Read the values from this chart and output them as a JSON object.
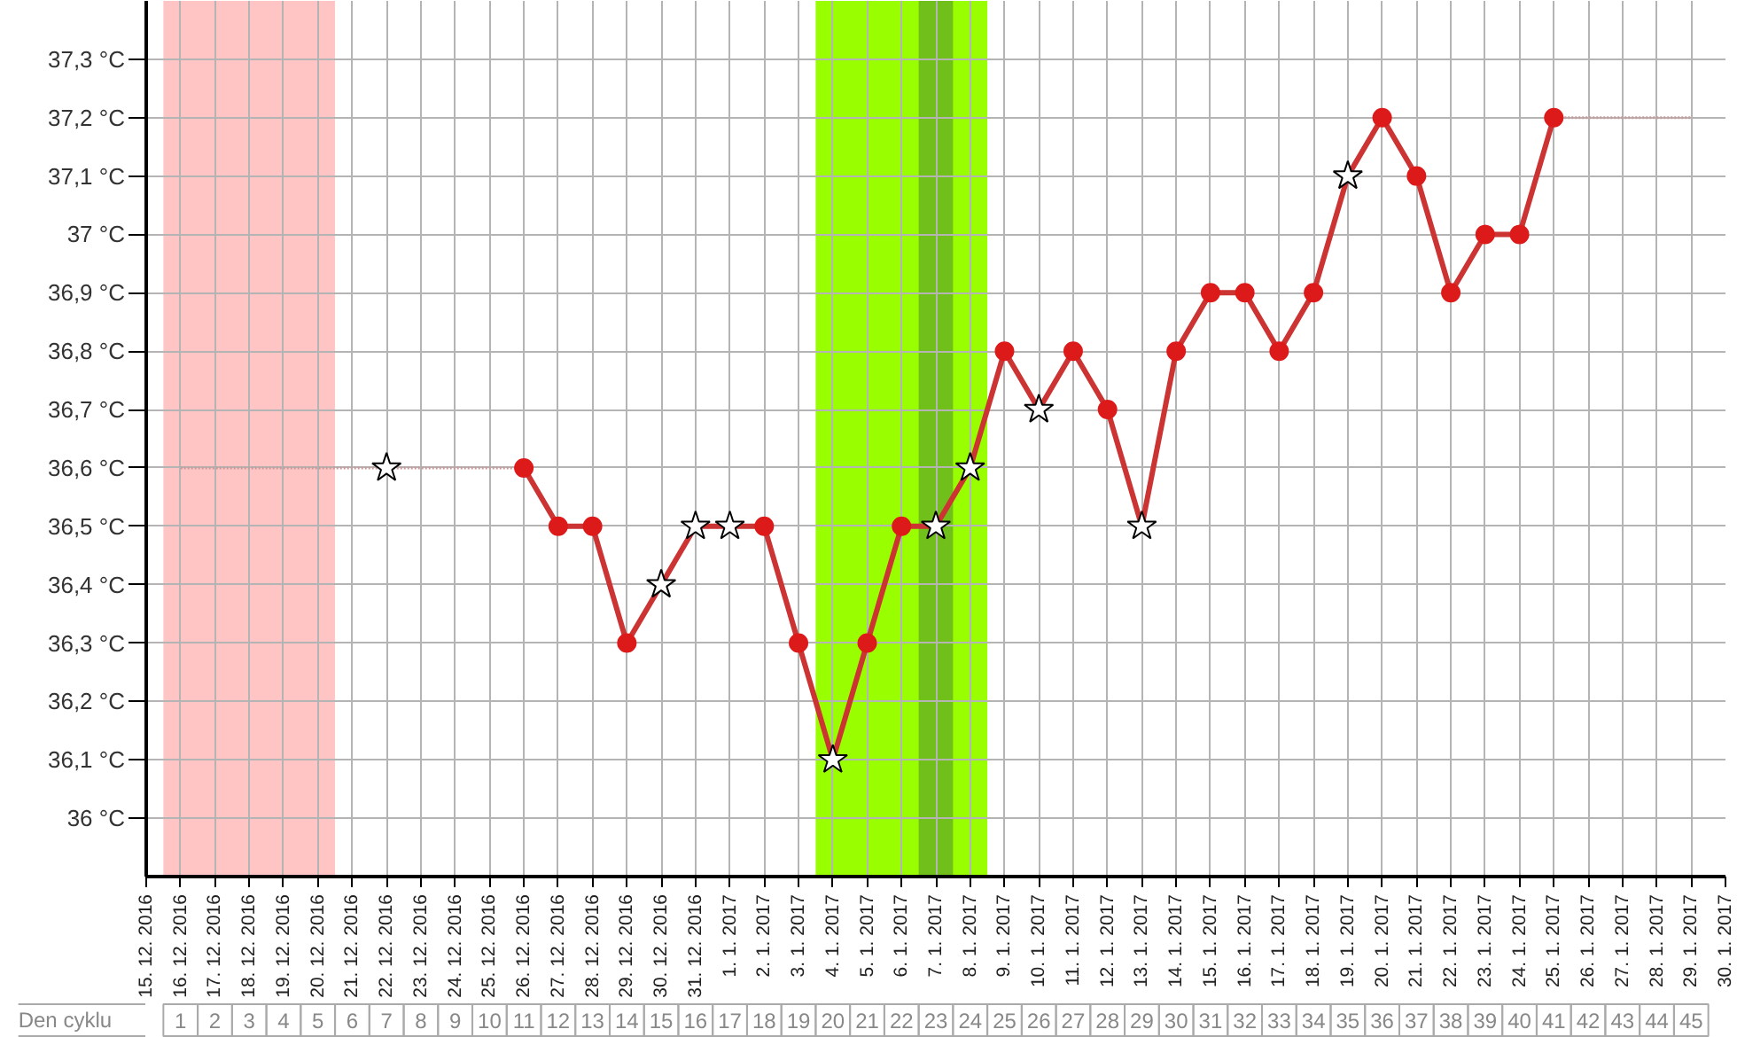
{
  "chart_data": {
    "type": "line",
    "xlim": [
      "2016-12-15",
      "2017-01-30"
    ],
    "xticks": [
      {
        "value": "2016-12-15",
        "label": "15. 12. 2016"
      },
      {
        "value": "2016-12-16",
        "label": "16. 12. 2016"
      },
      {
        "value": "2016-12-17",
        "label": "17. 12. 2016"
      },
      {
        "value": "2016-12-18",
        "label": "18. 12. 2016"
      },
      {
        "value": "2016-12-19",
        "label": "19. 12. 2016"
      },
      {
        "value": "2016-12-20",
        "label": "20. 12. 2016"
      },
      {
        "value": "2016-12-21",
        "label": "21. 12. 2016"
      },
      {
        "value": "2016-12-22",
        "label": "22. 12. 2016"
      },
      {
        "value": "2016-12-23",
        "label": "23. 12. 2016"
      },
      {
        "value": "2016-12-24",
        "label": "24. 12. 2016"
      },
      {
        "value": "2016-12-25",
        "label": "25. 12. 2016"
      },
      {
        "value": "2016-12-26",
        "label": "26. 12. 2016"
      },
      {
        "value": "2016-12-27",
        "label": "27. 12. 2016"
      },
      {
        "value": "2016-12-28",
        "label": "28. 12. 2016"
      },
      {
        "value": "2016-12-29",
        "label": "29. 12. 2016"
      },
      {
        "value": "2016-12-30",
        "label": "30. 12. 2016"
      },
      {
        "value": "2016-12-31",
        "label": "31. 12. 2016"
      },
      {
        "value": "2017-01-01",
        "label": "1. 1. 2017"
      },
      {
        "value": "2017-01-02",
        "label": "2. 1. 2017"
      },
      {
        "value": "2017-01-03",
        "label": "3. 1. 2017"
      },
      {
        "value": "2017-01-04",
        "label": "4. 1. 2017"
      },
      {
        "value": "2017-01-05",
        "label": "5. 1. 2017"
      },
      {
        "value": "2017-01-06",
        "label": "6. 1. 2017"
      },
      {
        "value": "2017-01-07",
        "label": "7. 1. 2017"
      },
      {
        "value": "2017-01-08",
        "label": "8. 1. 2017"
      },
      {
        "value": "2017-01-09",
        "label": "9. 1. 2017"
      },
      {
        "value": "2017-01-10",
        "label": "10. 1. 2017"
      },
      {
        "value": "2017-01-11",
        "label": "11. 1. 2017"
      },
      {
        "value": "2017-01-12",
        "label": "12. 1. 2017"
      },
      {
        "value": "2017-01-13",
        "label": "13. 1. 2017"
      },
      {
        "value": "2017-01-14",
        "label": "14. 1. 2017"
      },
      {
        "value": "2017-01-15",
        "label": "15. 1. 2017"
      },
      {
        "value": "2017-01-16",
        "label": "16. 1. 2017"
      },
      {
        "value": "2017-01-17",
        "label": "17. 1. 2017"
      },
      {
        "value": "2017-01-18",
        "label": "18. 1. 2017"
      },
      {
        "value": "2017-01-19",
        "label": "19. 1. 2017"
      },
      {
        "value": "2017-01-20",
        "label": "20. 1. 2017"
      },
      {
        "value": "2017-01-21",
        "label": "21. 1. 2017"
      },
      {
        "value": "2017-01-22",
        "label": "22. 1. 2017"
      },
      {
        "value": "2017-01-23",
        "label": "23. 1. 2017"
      },
      {
        "value": "2017-01-24",
        "label": "24. 1. 2017"
      },
      {
        "value": "2017-01-25",
        "label": "25. 1. 2017"
      },
      {
        "value": "2017-01-26",
        "label": "26. 1. 2017"
      },
      {
        "value": "2017-01-27",
        "label": "27. 1. 2017"
      },
      {
        "value": "2017-01-28",
        "label": "28. 1. 2017"
      },
      {
        "value": "2017-01-29",
        "label": "29. 1. 2017"
      },
      {
        "value": "2017-01-30",
        "label": "30. 1. 2017"
      }
    ],
    "ylim": [
      35.9,
      37.4
    ],
    "yticks": [
      {
        "value": 36.0,
        "label": "36 °C"
      },
      {
        "value": 36.1,
        "label": "36,1 °C"
      },
      {
        "value": 36.2,
        "label": "36,2 °C"
      },
      {
        "value": 36.3,
        "label": "36,3 °C"
      },
      {
        "value": 36.4,
        "label": "36,4 °C"
      },
      {
        "value": 36.5,
        "label": "36,5 °C"
      },
      {
        "value": 36.6,
        "label": "36,6 °C"
      },
      {
        "value": 36.7,
        "label": "36,7 °C"
      },
      {
        "value": 36.8,
        "label": "36,8 °C"
      },
      {
        "value": 36.9,
        "label": "36,9 °C"
      },
      {
        "value": 37.0,
        "label": "37 °C"
      },
      {
        "value": 37.1,
        "label": "37,1 °C"
      },
      {
        "value": 37.2,
        "label": "37,2 °C"
      },
      {
        "value": 37.3,
        "label": "37,3 °C"
      }
    ],
    "x2label": "Den cyklu",
    "x2lim": [
      0,
      46
    ],
    "x2ticks": [
      1,
      2,
      3,
      4,
      5,
      6,
      7,
      8,
      9,
      10,
      11,
      12,
      13,
      14,
      15,
      16,
      17,
      18,
      19,
      20,
      21,
      22,
      23,
      24,
      25,
      26,
      27,
      28,
      29,
      30,
      31,
      32,
      33,
      34,
      35,
      36,
      37,
      38,
      39,
      40,
      41,
      42,
      43,
      44,
      45
    ],
    "grid": true,
    "bands": [
      {
        "axis": "x",
        "from": "2016-12-15T12:00",
        "to": "2016-12-20T12:00",
        "color": "#ffc4c4"
      },
      {
        "axis": "x",
        "from": "2017-01-03T12:00",
        "to": "2017-01-08T12:00",
        "color": "#99ff00"
      },
      {
        "axis": "x",
        "from": "2017-01-06T12:00",
        "to": "2017-01-07T12:00",
        "color": "#70bf1a"
      }
    ],
    "series": [
      {
        "color": "#c89a9a",
        "line_style": "dotted",
        "marker": "none",
        "x": [
          "2016-12-16",
          "2016-12-17",
          "2016-12-18",
          "2016-12-19",
          "2016-12-20",
          "2016-12-21",
          "2016-12-22",
          "2016-12-23",
          "2016-12-24",
          "2016-12-25",
          "2016-12-26",
          "2016-12-27",
          "2016-12-28",
          "2016-12-29",
          "2016-12-30",
          "2016-12-31",
          "2017-01-01",
          "2017-01-02",
          "2017-01-03",
          "2017-01-04",
          "2017-01-05",
          "2017-01-06",
          "2017-01-07",
          "2017-01-08",
          "2017-01-09",
          "2017-01-10",
          "2017-01-11",
          "2017-01-12",
          "2017-01-13",
          "2017-01-14",
          "2017-01-15",
          "2017-01-16",
          "2017-01-17",
          "2017-01-18",
          "2017-01-19",
          "2017-01-20",
          "2017-01-21",
          "2017-01-22",
          "2017-01-23",
          "2017-01-24",
          "2017-01-25",
          "2017-01-26",
          "2017-01-27",
          "2017-01-28",
          "2017-01-29"
        ],
        "values": [
          36.6,
          36.6,
          36.6,
          36.6,
          36.6,
          36.6,
          36.6,
          36.6,
          36.6,
          36.6,
          36.6,
          null,
          null,
          null,
          null,
          null,
          null,
          null,
          null,
          null,
          null,
          null,
          null,
          null,
          null,
          null,
          null,
          null,
          null,
          null,
          null,
          null,
          null,
          null,
          null,
          null,
          null,
          null,
          null,
          null,
          37.2,
          37.2,
          37.2,
          37.2,
          37.2
        ]
      },
      {
        "color": "#cc3333",
        "line_style": "solid",
        "marker": "none",
        "x": [
          "2016-12-26",
          "2016-12-27",
          "2016-12-28",
          "2016-12-29",
          "2016-12-30",
          "2016-12-31",
          "2017-01-01",
          "2017-01-02",
          "2017-01-03",
          "2017-01-04",
          "2017-01-05",
          "2017-01-06",
          "2017-01-07",
          "2017-01-08",
          "2017-01-09",
          "2017-01-10",
          "2017-01-11",
          "2017-01-12",
          "2017-01-13",
          "2017-01-14",
          "2017-01-15",
          "2017-01-16",
          "2017-01-17",
          "2017-01-18",
          "2017-01-19",
          "2017-01-20",
          "2017-01-21",
          "2017-01-22",
          "2017-01-23",
          "2017-01-24",
          "2017-01-25"
        ],
        "values": [
          36.6,
          36.5,
          36.5,
          36.3,
          36.4,
          36.5,
          36.5,
          36.5,
          36.3,
          36.1,
          36.3,
          36.5,
          36.5,
          36.6,
          36.8,
          36.7,
          36.8,
          36.7,
          36.5,
          36.8,
          36.9,
          36.9,
          36.8,
          36.9,
          37.1,
          37.2,
          37.1,
          36.9,
          37.0,
          37.0,
          37.2
        ]
      },
      {
        "type": "scatter",
        "color": "#dd1a1a",
        "marker": "circle",
        "x": [
          "2016-12-26",
          "2016-12-27",
          "2016-12-28",
          "2016-12-29",
          "2017-01-02",
          "2017-01-03",
          "2017-01-05",
          "2017-01-06",
          "2017-01-09",
          "2017-01-11",
          "2017-01-12",
          "2017-01-14",
          "2017-01-15",
          "2017-01-16",
          "2017-01-17",
          "2017-01-18",
          "2017-01-20",
          "2017-01-21",
          "2017-01-22",
          "2017-01-23",
          "2017-01-24",
          "2017-01-25"
        ],
        "values": [
          36.6,
          36.5,
          36.5,
          36.3,
          36.5,
          36.3,
          36.3,
          36.5,
          36.8,
          36.8,
          36.7,
          36.8,
          36.9,
          36.9,
          36.8,
          36.9,
          37.2,
          37.1,
          36.9,
          37.0,
          37.0,
          37.2
        ]
      },
      {
        "type": "scatter",
        "color": "#ffffff",
        "marker": "star",
        "x": [
          "2016-12-22",
          "2016-12-30",
          "2016-12-31",
          "2017-01-01",
          "2017-01-04",
          "2017-01-07",
          "2017-01-08",
          "2017-01-10",
          "2017-01-13",
          "2017-01-19"
        ],
        "values": [
          36.6,
          36.4,
          36.5,
          36.5,
          36.1,
          36.5,
          36.6,
          36.7,
          36.5,
          37.1
        ]
      }
    ]
  }
}
